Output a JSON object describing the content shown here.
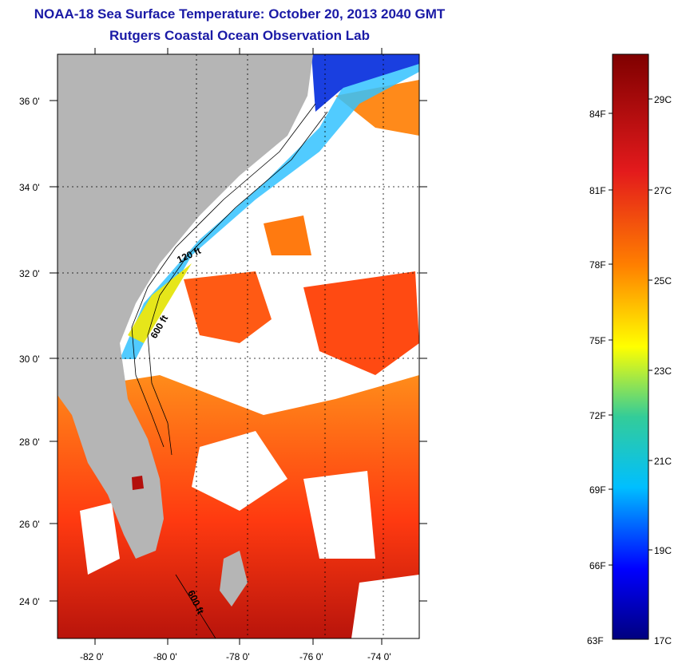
{
  "header": {
    "title": "NOAA-18 Sea Surface Temperature:  October 20, 2013 2040 GMT",
    "subtitle": "Rutgers Coastal Ocean Observation Lab"
  },
  "map": {
    "lon_labels": [
      "-82 0'",
      "-80 0'",
      "-78 0'",
      "-76 0'",
      "-74 0'"
    ],
    "lat_labels": [
      "36 0'",
      "34 0'",
      "32 0'",
      "30 0'",
      "28 0'",
      "26 0'",
      "24 0'"
    ],
    "contour_labels": [
      "120 ft",
      "600 ft",
      "600 ft"
    ],
    "colors": {
      "land": "#b5b5b5",
      "cloud": "#ffffff",
      "frame": "#000000"
    }
  },
  "colorbar": {
    "f_labels": [
      "84F",
      "81F",
      "78F",
      "75F",
      "72F",
      "69F",
      "66F",
      "63F"
    ],
    "c_labels": [
      "29C",
      "27C",
      "25C",
      "23C",
      "21C",
      "19C",
      "17C"
    ],
    "gradient_colors": [
      "#7f0000",
      "#e31a1c",
      "#ff7f00",
      "#ffff00",
      "#33cc99",
      "#00bfff",
      "#0000ff",
      "#00007f"
    ]
  }
}
